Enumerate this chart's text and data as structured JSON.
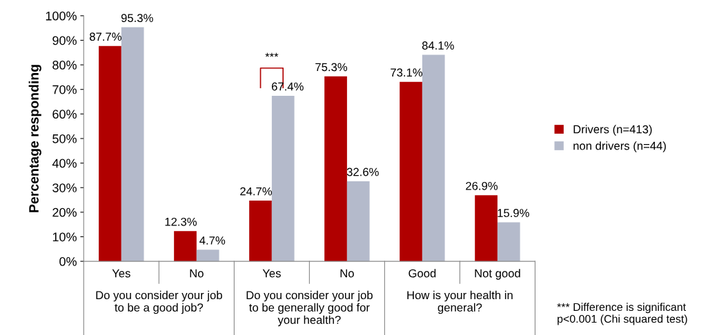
{
  "chart_data": {
    "type": "bar",
    "ylabel": "Percentage responding",
    "categories": [
      "Yes",
      "No",
      "Yes",
      "No",
      "Good",
      "Not good"
    ],
    "series": [
      {
        "name": "Drivers (n=413)",
        "color": "#b00000",
        "values": [
          87.7,
          12.3,
          24.7,
          75.3,
          73.1,
          26.9
        ],
        "value_labels": [
          "87.7%",
          "12.3%",
          "24.7%",
          "75.3%",
          "73.1%",
          "26.9%"
        ]
      },
      {
        "name": "non drivers (n=44)",
        "color": "#b4bacb",
        "values": [
          95.3,
          4.7,
          67.4,
          32.6,
          84.1,
          15.9
        ],
        "value_labels": [
          "95.3%",
          "4.7%",
          "67.4%",
          "32.6%",
          "84.1%",
          "15.9%"
        ]
      }
    ],
    "ylim": [
      0,
      100
    ],
    "yticks": [
      {
        "value": 0,
        "label": "0%"
      },
      {
        "value": 10,
        "label": "10%"
      },
      {
        "value": 20,
        "label": "20%"
      },
      {
        "value": 30,
        "label": "30%"
      },
      {
        "value": 40,
        "label": "40%"
      },
      {
        "value": 50,
        "label": "50%"
      },
      {
        "value": 60,
        "label": "60%"
      },
      {
        "value": 70,
        "label": "70%"
      },
      {
        "value": 80,
        "label": "80%"
      },
      {
        "value": 90,
        "label": "90%"
      },
      {
        "value": 100,
        "label": "100%"
      }
    ],
    "grid": false,
    "legend": "right",
    "annotations": [
      "Do you consider your job\nto be a good job?",
      "Do you consider your job\nto be generally good for\nyour health?",
      "How is your health in\ngeneral?",
      "***",
      "*** Difference is significant\np<0.001 (Chi squared test)"
    ]
  }
}
